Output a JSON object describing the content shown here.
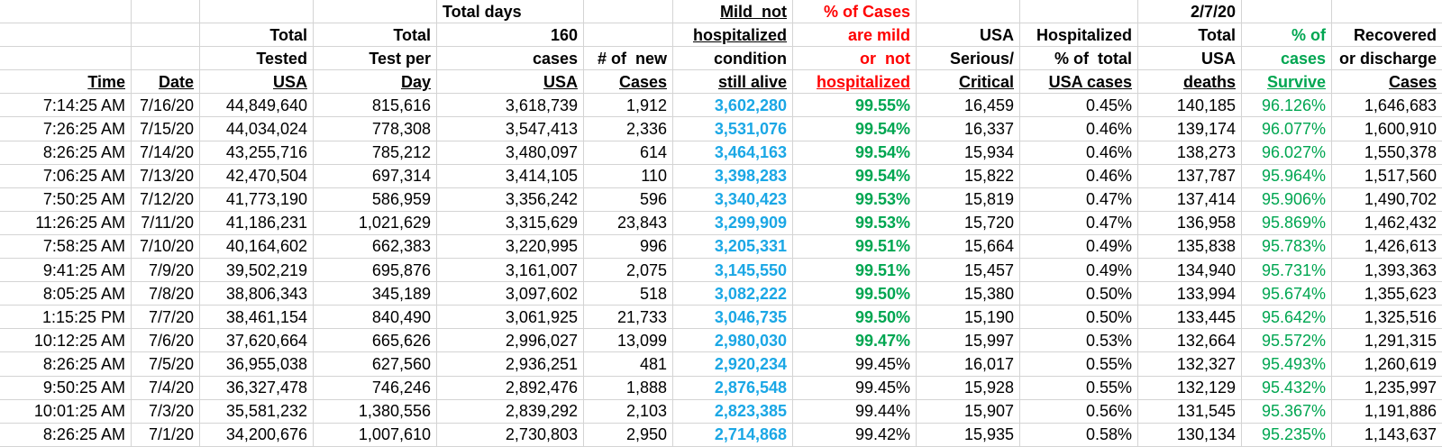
{
  "colors": {
    "mild_value_blue": "#1ba7e5",
    "pct_green": "#00a651",
    "warning_red": "#ff0000",
    "gridline": "#d4d4d4"
  },
  "table": {
    "header_rows": [
      [
        {
          "t": ""
        },
        {
          "t": ""
        },
        {
          "t": ""
        },
        {
          "t": ""
        },
        {
          "t": "Total days",
          "a": "l"
        },
        {
          "t": ""
        },
        {
          "t": "Mild  not",
          "u": true
        },
        {
          "t": "% of Cases",
          "c": "red"
        },
        {
          "t": ""
        },
        {
          "t": ""
        },
        {
          "t": "2/7/20"
        },
        {
          "t": ""
        },
        {
          "t": ""
        }
      ],
      [
        {
          "t": ""
        },
        {
          "t": ""
        },
        {
          "t": "Total"
        },
        {
          "t": "Total"
        },
        {
          "t": "160"
        },
        {
          "t": ""
        },
        {
          "t": "hospitalized",
          "u": true
        },
        {
          "t": "are mild",
          "c": "red"
        },
        {
          "t": "USA"
        },
        {
          "t": "Hospitalized"
        },
        {
          "t": "Total"
        },
        {
          "t": "% of",
          "c": "green"
        },
        {
          "t": "Recovered"
        }
      ],
      [
        {
          "t": ""
        },
        {
          "t": ""
        },
        {
          "t": "Tested"
        },
        {
          "t": "Test per"
        },
        {
          "t": "cases"
        },
        {
          "t": "# of  new"
        },
        {
          "t": "condition"
        },
        {
          "t": "or  not",
          "c": "red"
        },
        {
          "t": "Serious/"
        },
        {
          "t": "% of  total"
        },
        {
          "t": "USA"
        },
        {
          "t": "cases",
          "c": "green"
        },
        {
          "t": "or discharge",
          "o": true
        }
      ],
      [
        {
          "t": "Time",
          "u": true
        },
        {
          "t": "Date",
          "u": true
        },
        {
          "t": "USA",
          "u": true
        },
        {
          "t": "Day",
          "u": true
        },
        {
          "t": "USA",
          "u": true
        },
        {
          "t": "Cases",
          "u": true
        },
        {
          "t": "still alive",
          "u": true
        },
        {
          "t": "hospitalized",
          "c": "red",
          "u": true,
          "o": true
        },
        {
          "t": "Critical",
          "u": true
        },
        {
          "t": "USA cases",
          "u": true
        },
        {
          "t": "deaths",
          "u": true
        },
        {
          "t": "Survive",
          "c": "green",
          "u": true
        },
        {
          "t": "Cases",
          "u": true
        }
      ]
    ],
    "rows": [
      {
        "time": "7:14:25 AM",
        "date": "7/16/20",
        "tested": "44,849,640",
        "test_per_day": "815,616",
        "total_cases": "3,618,739",
        "new_cases": "1,912",
        "mild": "3,602,280",
        "mild_pct": "99.55%",
        "mild_green": true,
        "serious": "16,459",
        "hosp_pct": "0.45%",
        "deaths": "140,185",
        "survive_pct": "96.126%",
        "recovered": "1,646,683"
      },
      {
        "time": "7:26:25 AM",
        "date": "7/15/20",
        "tested": "44,034,024",
        "test_per_day": "778,308",
        "total_cases": "3,547,413",
        "new_cases": "2,336",
        "mild": "3,531,076",
        "mild_pct": "99.54%",
        "mild_green": true,
        "serious": "16,337",
        "hosp_pct": "0.46%",
        "deaths": "139,174",
        "survive_pct": "96.077%",
        "recovered": "1,600,910"
      },
      {
        "time": "8:26:25 AM",
        "date": "7/14/20",
        "tested": "43,255,716",
        "test_per_day": "785,212",
        "total_cases": "3,480,097",
        "new_cases": "614",
        "mild": "3,464,163",
        "mild_pct": "99.54%",
        "mild_green": true,
        "serious": "15,934",
        "hosp_pct": "0.46%",
        "deaths": "138,273",
        "survive_pct": "96.027%",
        "recovered": "1,550,378"
      },
      {
        "time": "7:06:25 AM",
        "date": "7/13/20",
        "tested": "42,470,504",
        "test_per_day": "697,314",
        "total_cases": "3,414,105",
        "new_cases": "110",
        "mild": "3,398,283",
        "mild_pct": "99.54%",
        "mild_green": true,
        "serious": "15,822",
        "hosp_pct": "0.46%",
        "deaths": "137,787",
        "survive_pct": "95.964%",
        "recovered": "1,517,560"
      },
      {
        "time": "7:50:25 AM",
        "date": "7/12/20",
        "tested": "41,773,190",
        "test_per_day": "586,959",
        "total_cases": "3,356,242",
        "new_cases": "596",
        "mild": "3,340,423",
        "mild_pct": "99.53%",
        "mild_green": true,
        "serious": "15,819",
        "hosp_pct": "0.47%",
        "deaths": "137,414",
        "survive_pct": "95.906%",
        "recovered": "1,490,702"
      },
      {
        "time": "11:26:25 AM",
        "date": "7/11/20",
        "tested": "41,186,231",
        "test_per_day": "1,021,629",
        "total_cases": "3,315,629",
        "new_cases": "23,843",
        "mild": "3,299,909",
        "mild_pct": "99.53%",
        "mild_green": true,
        "serious": "15,720",
        "hosp_pct": "0.47%",
        "deaths": "136,958",
        "survive_pct": "95.869%",
        "recovered": "1,462,432"
      },
      {
        "time": "7:58:25 AM",
        "date": "7/10/20",
        "tested": "40,164,602",
        "test_per_day": "662,383",
        "total_cases": "3,220,995",
        "new_cases": "996",
        "mild": "3,205,331",
        "mild_pct": "99.51%",
        "mild_green": true,
        "serious": "15,664",
        "hosp_pct": "0.49%",
        "deaths": "135,838",
        "survive_pct": "95.783%",
        "recovered": "1,426,613"
      },
      {
        "time": "9:41:25 AM",
        "date": "7/9/20",
        "tested": "39,502,219",
        "test_per_day": "695,876",
        "total_cases": "3,161,007",
        "new_cases": "2,075",
        "mild": "3,145,550",
        "mild_pct": "99.51%",
        "mild_green": true,
        "serious": "15,457",
        "hosp_pct": "0.49%",
        "deaths": "134,940",
        "survive_pct": "95.731%",
        "recovered": "1,393,363"
      },
      {
        "time": "8:05:25 AM",
        "date": "7/8/20",
        "tested": "38,806,343",
        "test_per_day": "345,189",
        "total_cases": "3,097,602",
        "new_cases": "518",
        "mild": "3,082,222",
        "mild_pct": "99.50%",
        "mild_green": true,
        "serious": "15,380",
        "hosp_pct": "0.50%",
        "deaths": "133,994",
        "survive_pct": "95.674%",
        "recovered": "1,355,623"
      },
      {
        "time": "1:15:25 PM",
        "date": "7/7/20",
        "tested": "38,461,154",
        "test_per_day": "840,490",
        "total_cases": "3,061,925",
        "new_cases": "21,733",
        "mild": "3,046,735",
        "mild_pct": "99.50%",
        "mild_green": true,
        "serious": "15,190",
        "hosp_pct": "0.50%",
        "deaths": "133,445",
        "survive_pct": "95.642%",
        "recovered": "1,325,516"
      },
      {
        "time": "10:12:25 AM",
        "date": "7/6/20",
        "tested": "37,620,664",
        "test_per_day": "665,626",
        "total_cases": "2,996,027",
        "new_cases": "13,099",
        "mild": "2,980,030",
        "mild_pct": "99.47%",
        "mild_green": true,
        "serious": "15,997",
        "hosp_pct": "0.53%",
        "deaths": "132,664",
        "survive_pct": "95.572%",
        "recovered": "1,291,315"
      },
      {
        "time": "8:26:25 AM",
        "date": "7/5/20",
        "tested": "36,955,038",
        "test_per_day": "627,560",
        "total_cases": "2,936,251",
        "new_cases": "481",
        "mild": "2,920,234",
        "mild_pct": "99.45%",
        "mild_green": false,
        "serious": "16,017",
        "hosp_pct": "0.55%",
        "deaths": "132,327",
        "survive_pct": "95.493%",
        "recovered": "1,260,619"
      },
      {
        "time": "9:50:25 AM",
        "date": "7/4/20",
        "tested": "36,327,478",
        "test_per_day": "746,246",
        "total_cases": "2,892,476",
        "new_cases": "1,888",
        "mild": "2,876,548",
        "mild_pct": "99.45%",
        "mild_green": false,
        "serious": "15,928",
        "hosp_pct": "0.55%",
        "deaths": "132,129",
        "survive_pct": "95.432%",
        "recovered": "1,235,997"
      },
      {
        "time": "10:01:25 AM",
        "date": "7/3/20",
        "tested": "35,581,232",
        "test_per_day": "1,380,556",
        "total_cases": "2,839,292",
        "new_cases": "2,103",
        "mild": "2,823,385",
        "mild_pct": "99.44%",
        "mild_green": false,
        "serious": "15,907",
        "hosp_pct": "0.56%",
        "deaths": "131,545",
        "survive_pct": "95.367%",
        "recovered": "1,191,886"
      },
      {
        "time": "8:26:25 AM",
        "date": "7/1/20",
        "tested": "34,200,676",
        "test_per_day": "1,007,610",
        "total_cases": "2,730,803",
        "new_cases": "2,950",
        "mild": "2,714,868",
        "mild_pct": "99.42%",
        "mild_green": false,
        "serious": "15,935",
        "hosp_pct": "0.58%",
        "deaths": "130,134",
        "survive_pct": "95.235%",
        "recovered": "1,143,637"
      }
    ]
  }
}
